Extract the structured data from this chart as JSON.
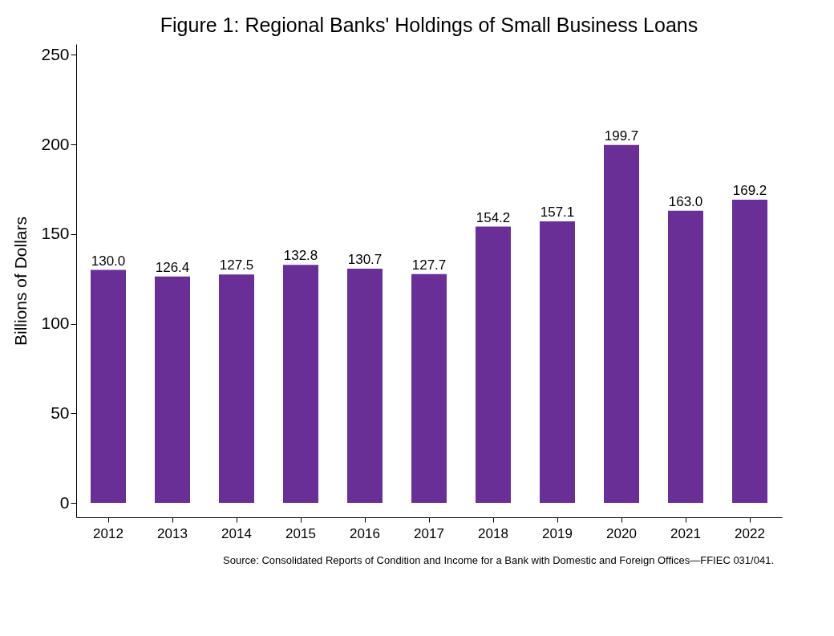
{
  "chart_data": {
    "type": "bar",
    "title": "Figure 1: Regional Banks' Holdings of Small Business Loans",
    "ylabel": "Billions of Dollars",
    "categories": [
      "2012",
      "2013",
      "2014",
      "2015",
      "2016",
      "2017",
      "2018",
      "2019",
      "2020",
      "2021",
      "2022"
    ],
    "values": [
      130.0,
      126.4,
      127.5,
      132.8,
      130.7,
      127.7,
      154.2,
      157.1,
      199.7,
      163.0,
      169.2
    ],
    "color": "#6a2f96",
    "ylim": [
      -8,
      256
    ],
    "yticks": [
      0,
      50,
      100,
      150,
      200,
      250
    ],
    "grid": false,
    "value_labels": [
      "130.0",
      "126.4",
      "127.5",
      "132.8",
      "130.7",
      "127.7",
      "154.2",
      "157.1",
      "199.7",
      "163.0",
      "169.2"
    ],
    "annotations": [
      "Source: Consolidated Reports of Condition and Income for a Bank with Domestic and Foreign Offices—FFIEC 031/041."
    ]
  }
}
